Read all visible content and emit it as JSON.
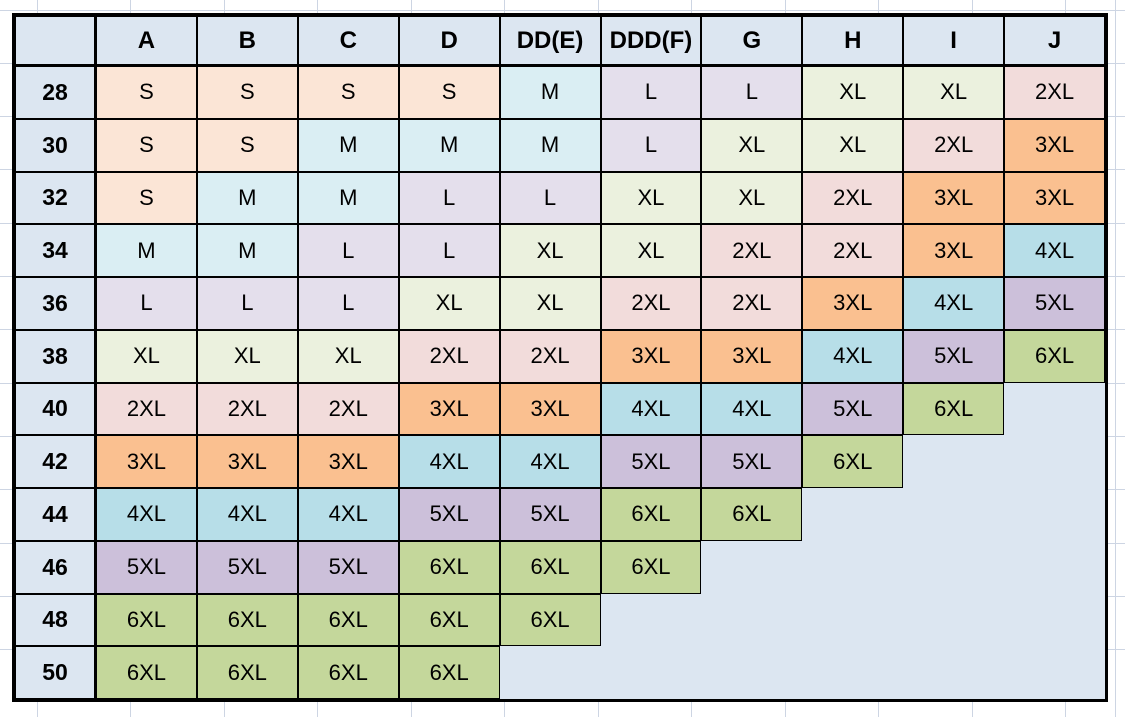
{
  "table": {
    "corner_label": "",
    "columns": [
      "A",
      "B",
      "C",
      "D",
      "DD(E)",
      "DDD(F)",
      "G",
      "H",
      "I",
      "J"
    ],
    "rows": [
      {
        "band": "28",
        "cells": [
          "S",
          "S",
          "S",
          "S",
          "M",
          "L",
          "L",
          "XL",
          "XL",
          "2XL"
        ]
      },
      {
        "band": "30",
        "cells": [
          "S",
          "S",
          "M",
          "M",
          "M",
          "L",
          "XL",
          "XL",
          "2XL",
          "3XL"
        ]
      },
      {
        "band": "32",
        "cells": [
          "S",
          "M",
          "M",
          "L",
          "L",
          "XL",
          "XL",
          "2XL",
          "3XL",
          "3XL"
        ]
      },
      {
        "band": "34",
        "cells": [
          "M",
          "M",
          "L",
          "L",
          "XL",
          "XL",
          "2XL",
          "2XL",
          "3XL",
          "4XL"
        ]
      },
      {
        "band": "36",
        "cells": [
          "L",
          "L",
          "L",
          "XL",
          "XL",
          "2XL",
          "2XL",
          "3XL",
          "4XL",
          "5XL"
        ]
      },
      {
        "band": "38",
        "cells": [
          "XL",
          "XL",
          "XL",
          "2XL",
          "2XL",
          "3XL",
          "3XL",
          "4XL",
          "5XL",
          "6XL"
        ]
      },
      {
        "band": "40",
        "cells": [
          "2XL",
          "2XL",
          "2XL",
          "3XL",
          "3XL",
          "4XL",
          "4XL",
          "5XL",
          "6XL",
          ""
        ]
      },
      {
        "band": "42",
        "cells": [
          "3XL",
          "3XL",
          "3XL",
          "4XL",
          "4XL",
          "5XL",
          "5XL",
          "6XL",
          "",
          ""
        ]
      },
      {
        "band": "44",
        "cells": [
          "4XL",
          "4XL",
          "4XL",
          "5XL",
          "5XL",
          "6XL",
          "6XL",
          "",
          "",
          ""
        ]
      },
      {
        "band": "46",
        "cells": [
          "5XL",
          "5XL",
          "5XL",
          "6XL",
          "6XL",
          "6XL",
          "",
          "",
          "",
          ""
        ]
      },
      {
        "band": "48",
        "cells": [
          "6XL",
          "6XL",
          "6XL",
          "6XL",
          "6XL",
          "",
          "",
          "",
          "",
          ""
        ]
      },
      {
        "band": "50",
        "cells": [
          "6XL",
          "6XL",
          "6XL",
          "6XL",
          "",
          "",
          "",
          "",
          "",
          ""
        ]
      }
    ],
    "colors": {
      "header_bg": "#dce6f1",
      "empty_bg": "#dce6f1",
      "border": "#000000",
      "sheet_gridline": "#cdd5e3",
      "S": "#fbe5d6",
      "M": "#daeef3",
      "L": "#e4dfec",
      "XL": "#ebf1de",
      "2XL": "#f2dcdb",
      "3XL": "#fac090",
      "4XL": "#b7dee8",
      "5XL": "#ccc0da",
      "6XL": "#c4d79b"
    }
  }
}
